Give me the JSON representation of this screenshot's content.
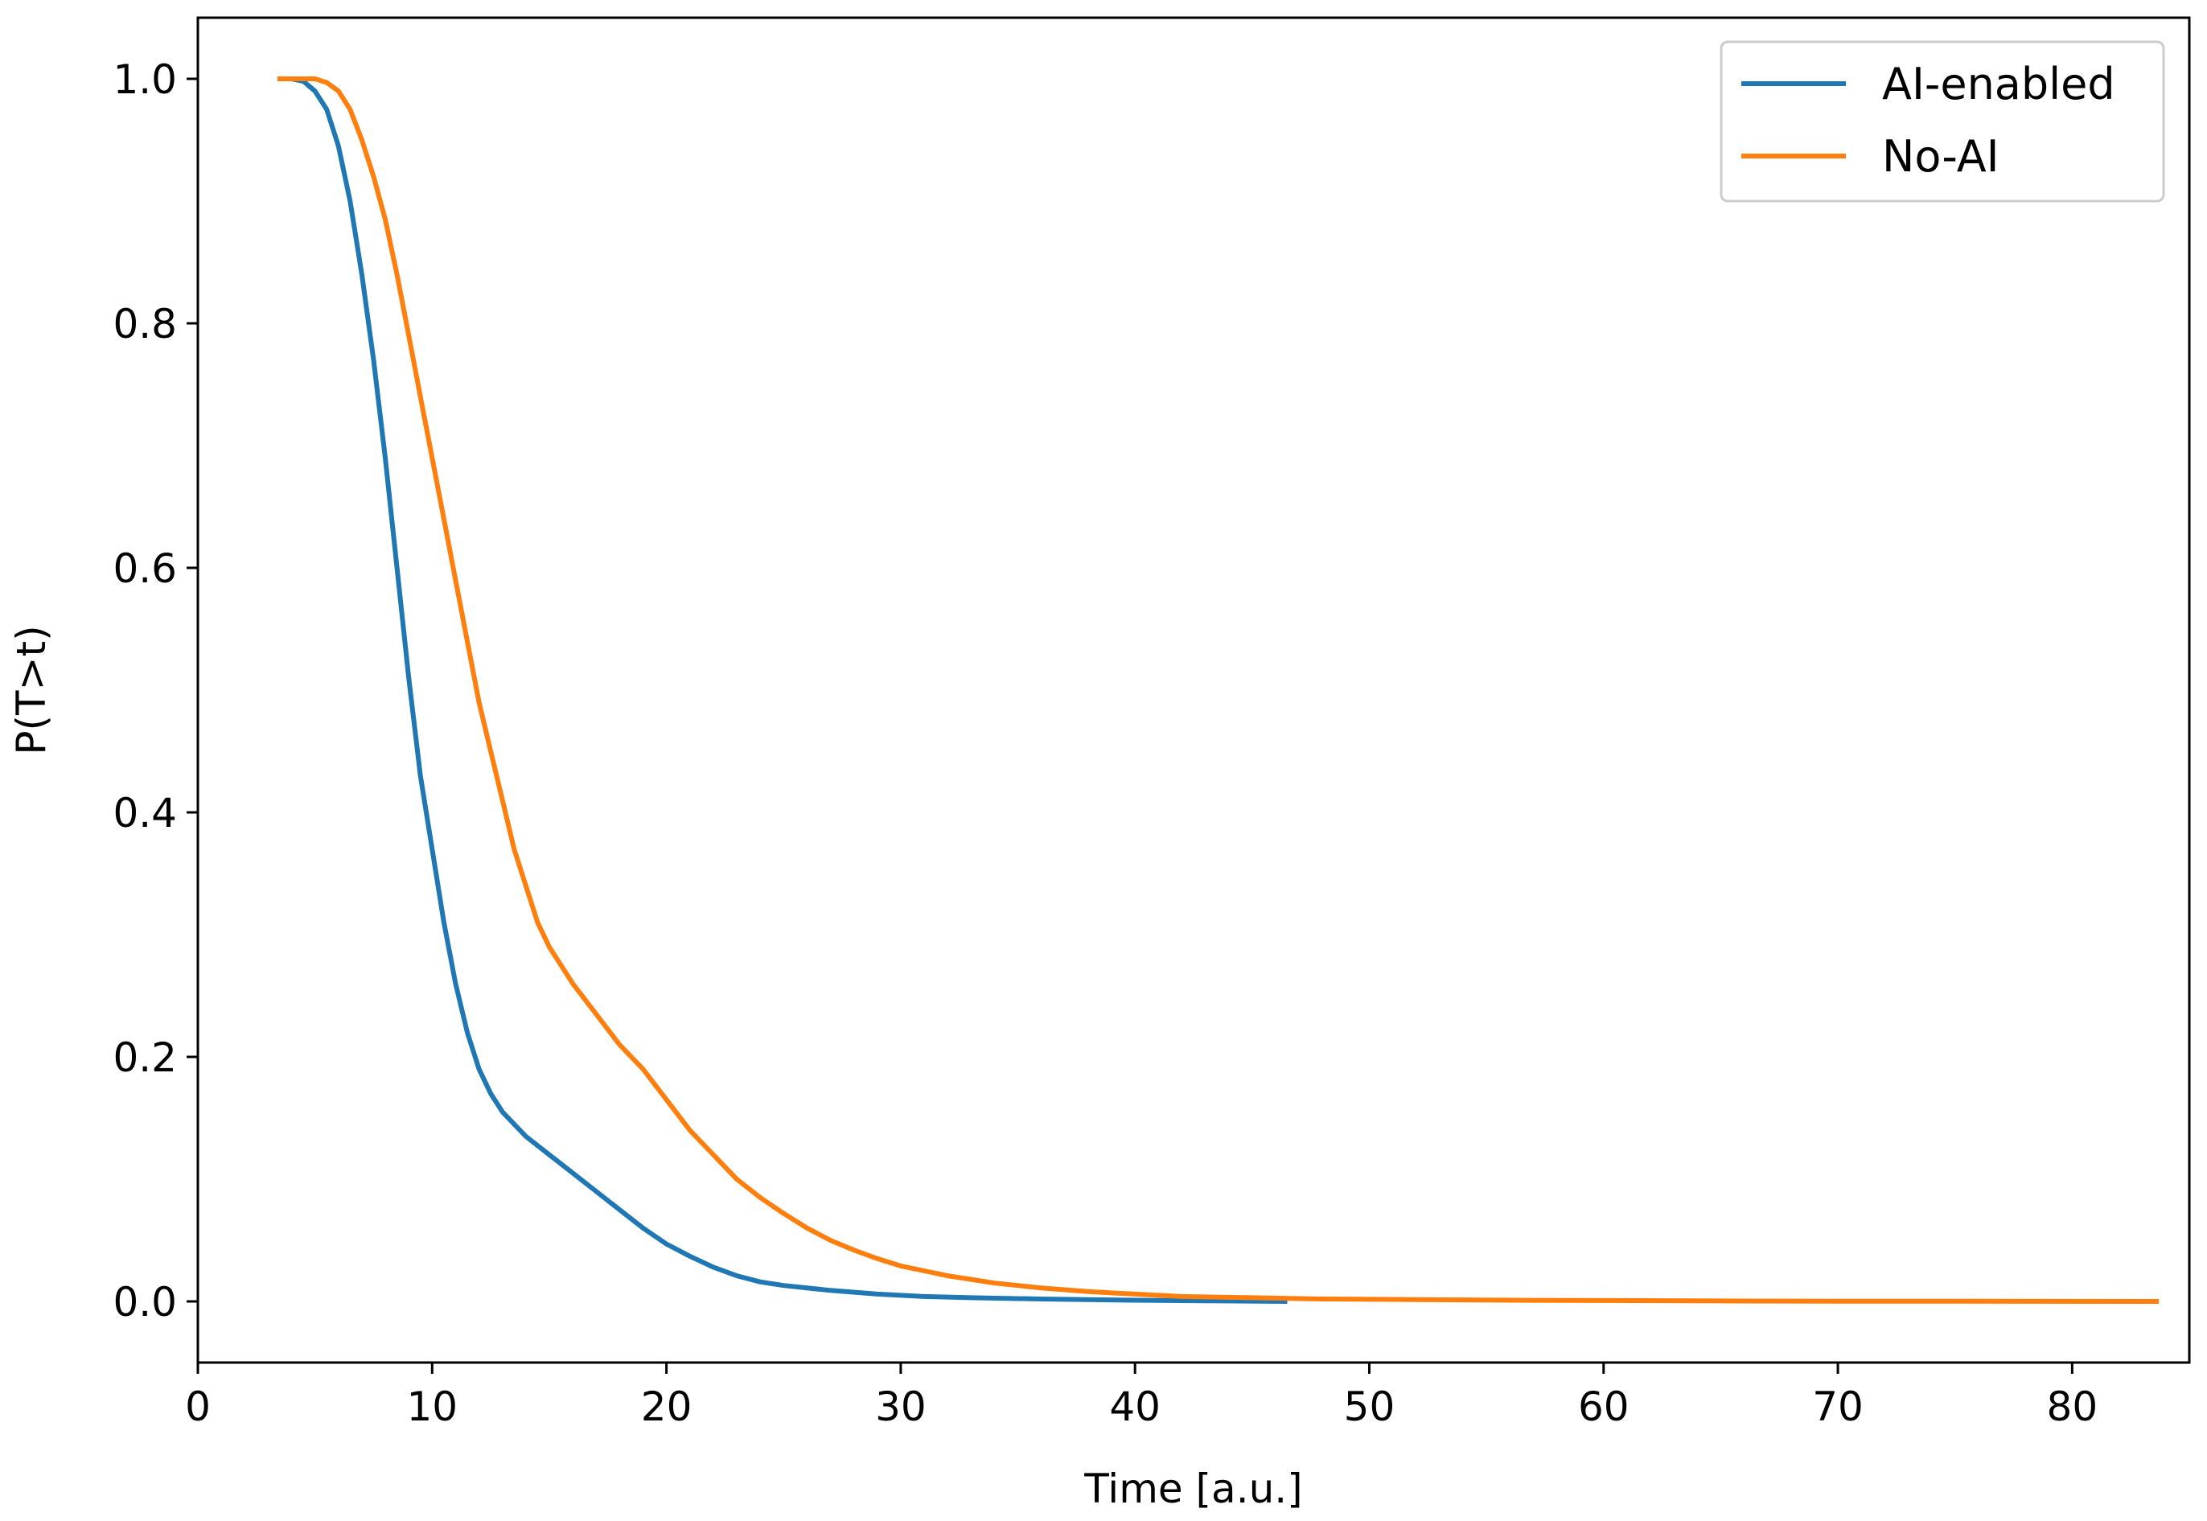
{
  "chart_data": {
    "type": "line",
    "title": "",
    "xlabel": "Time [a.u.]",
    "ylabel": "P(T>t)",
    "xlim": [
      0,
      85
    ],
    "ylim": [
      -0.05,
      1.05
    ],
    "xticks": [
      0,
      10,
      20,
      30,
      40,
      50,
      60,
      70,
      80
    ],
    "yticks": [
      0.0,
      0.2,
      0.4,
      0.6,
      0.8,
      1.0
    ],
    "xtick_labels": [
      "0",
      "10",
      "20",
      "30",
      "40",
      "50",
      "60",
      "70",
      "80"
    ],
    "ytick_labels": [
      "0.0",
      "0.2",
      "0.4",
      "0.6",
      "0.8",
      "1.0"
    ],
    "grid": false,
    "legend_position": "top-right",
    "series": [
      {
        "name": "AI-enabled",
        "color": "#1f77b4",
        "points": [
          [
            3.4,
            1.0
          ],
          [
            4.0,
            1.0
          ],
          [
            4.5,
            0.998
          ],
          [
            5.0,
            0.99
          ],
          [
            5.5,
            0.975
          ],
          [
            6.0,
            0.945
          ],
          [
            6.5,
            0.9
          ],
          [
            7.0,
            0.84
          ],
          [
            7.5,
            0.77
          ],
          [
            8.0,
            0.69
          ],
          [
            8.5,
            0.6
          ],
          [
            9.0,
            0.51
          ],
          [
            9.5,
            0.43
          ],
          [
            10.0,
            0.37
          ],
          [
            10.5,
            0.31
          ],
          [
            11.0,
            0.26
          ],
          [
            11.5,
            0.22
          ],
          [
            12.0,
            0.19
          ],
          [
            12.5,
            0.17
          ],
          [
            13.0,
            0.155
          ],
          [
            14.0,
            0.135
          ],
          [
            15.0,
            0.12
          ],
          [
            16.0,
            0.105
          ],
          [
            17.0,
            0.09
          ],
          [
            18.0,
            0.075
          ],
          [
            19.0,
            0.06
          ],
          [
            20.0,
            0.047
          ],
          [
            21.0,
            0.037
          ],
          [
            22.0,
            0.028
          ],
          [
            23.0,
            0.021
          ],
          [
            24.0,
            0.016
          ],
          [
            25.0,
            0.013
          ],
          [
            27.0,
            0.009
          ],
          [
            29.0,
            0.006
          ],
          [
            31.0,
            0.004
          ],
          [
            33.0,
            0.003
          ],
          [
            36.0,
            0.002
          ],
          [
            40.0,
            0.001
          ],
          [
            43.0,
            0.0005
          ],
          [
            46.5,
            0.0
          ]
        ]
      },
      {
        "name": "No-AI",
        "color": "#ff7f0e",
        "points": [
          [
            3.4,
            1.0
          ],
          [
            5.0,
            1.0
          ],
          [
            5.5,
            0.997
          ],
          [
            6.0,
            0.99
          ],
          [
            6.5,
            0.975
          ],
          [
            7.0,
            0.95
          ],
          [
            7.5,
            0.92
          ],
          [
            8.0,
            0.885
          ],
          [
            8.5,
            0.84
          ],
          [
            9.0,
            0.79
          ],
          [
            9.5,
            0.74
          ],
          [
            10.0,
            0.69
          ],
          [
            10.5,
            0.64
          ],
          [
            11.0,
            0.59
          ],
          [
            11.5,
            0.54
          ],
          [
            12.0,
            0.49
          ],
          [
            12.5,
            0.45
          ],
          [
            13.0,
            0.41
          ],
          [
            13.5,
            0.37
          ],
          [
            14.0,
            0.34
          ],
          [
            14.5,
            0.31
          ],
          [
            15.0,
            0.29
          ],
          [
            16.0,
            0.26
          ],
          [
            17.0,
            0.235
          ],
          [
            18.0,
            0.21
          ],
          [
            19.0,
            0.19
          ],
          [
            20.0,
            0.165
          ],
          [
            21.0,
            0.14
          ],
          [
            22.0,
            0.12
          ],
          [
            23.0,
            0.1
          ],
          [
            24.0,
            0.085
          ],
          [
            25.0,
            0.072
          ],
          [
            26.0,
            0.06
          ],
          [
            27.0,
            0.05
          ],
          [
            28.0,
            0.042
          ],
          [
            29.0,
            0.035
          ],
          [
            30.0,
            0.029
          ],
          [
            31.0,
            0.025
          ],
          [
            32.0,
            0.021
          ],
          [
            33.0,
            0.018
          ],
          [
            34.0,
            0.015
          ],
          [
            35.0,
            0.013
          ],
          [
            36.0,
            0.011
          ],
          [
            38.0,
            0.008
          ],
          [
            40.0,
            0.006
          ],
          [
            42.0,
            0.004
          ],
          [
            45.0,
            0.003
          ],
          [
            48.0,
            0.002
          ],
          [
            52.0,
            0.0015
          ],
          [
            56.0,
            0.001
          ],
          [
            60.0,
            0.0007
          ],
          [
            65.0,
            0.0004
          ],
          [
            70.0,
            0.0002
          ],
          [
            75.0,
            0.0001
          ],
          [
            83.7,
            0.0
          ]
        ]
      }
    ]
  }
}
